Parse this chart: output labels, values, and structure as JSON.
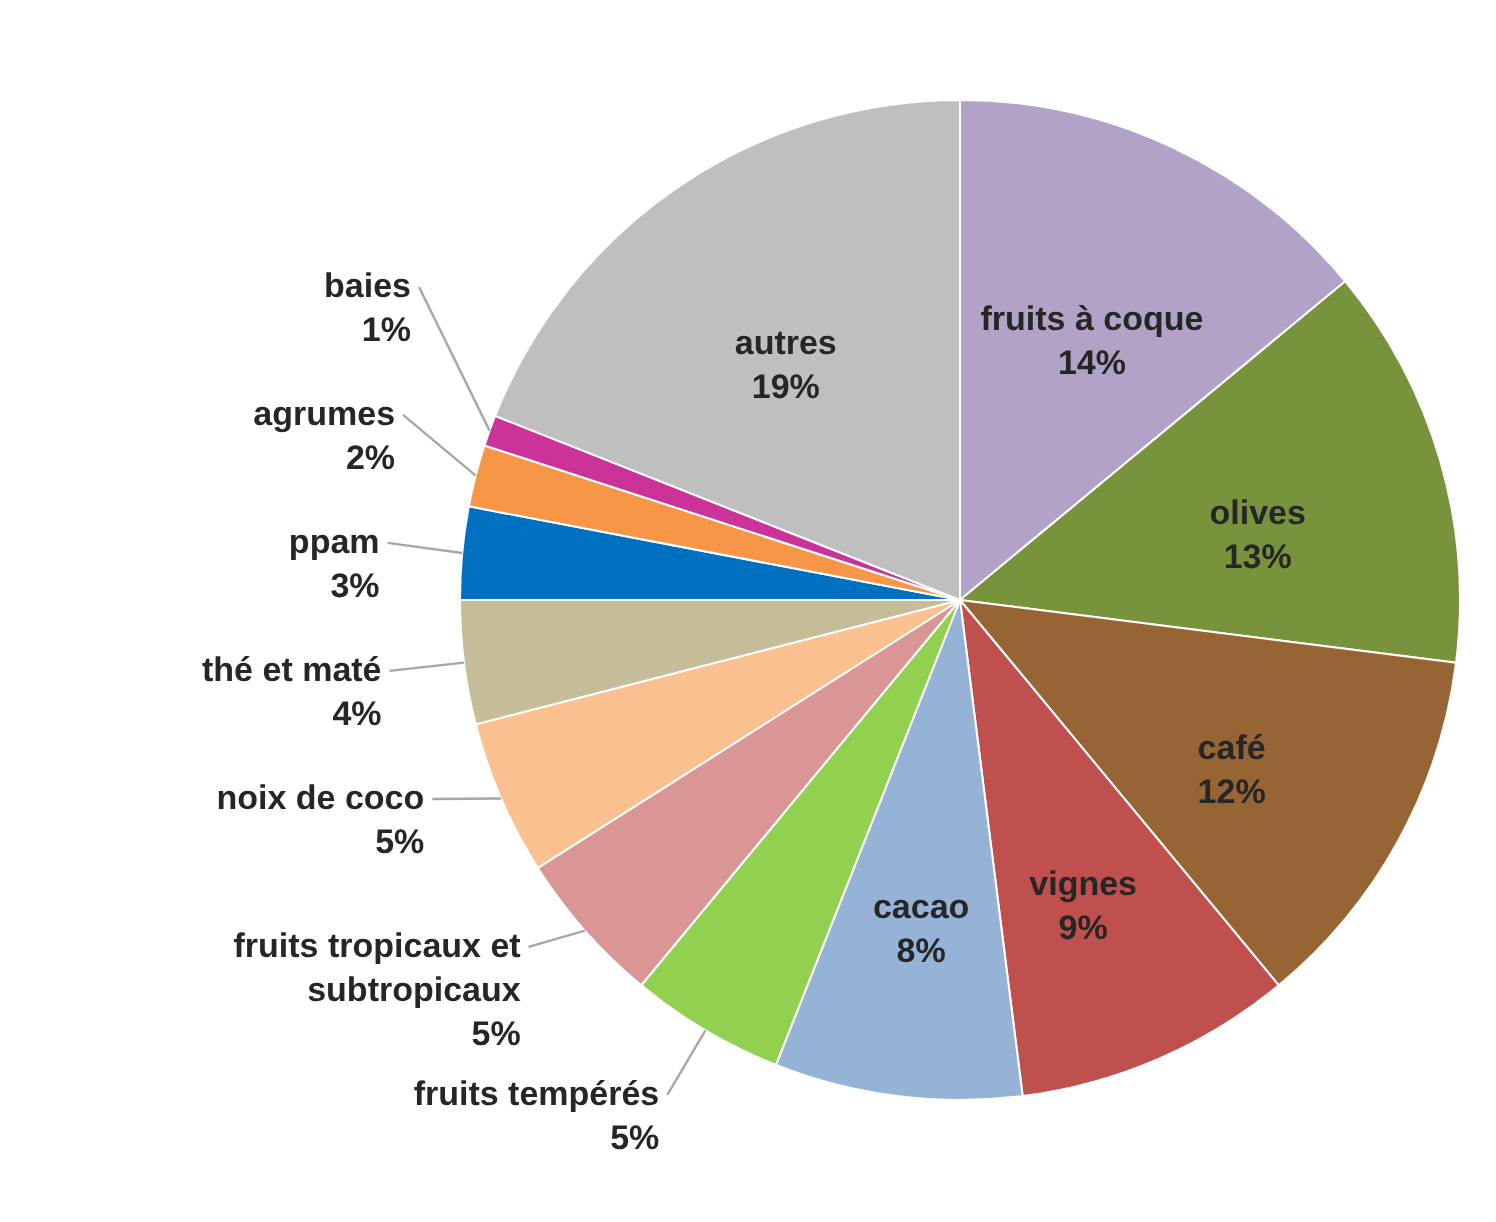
{
  "chart_data": {
    "type": "pie",
    "categories": [
      "fruits à coque",
      "olives",
      "café",
      "vignes",
      "cacao",
      "fruits tempérés",
      "fruits tropicaux et\nsubtropicaux",
      "noix de coco",
      "thé et maté",
      "ppam",
      "agrumes",
      "baies",
      "autres"
    ],
    "values": [
      14,
      13,
      12,
      9,
      8,
      5,
      5,
      5,
      4,
      3,
      2,
      1,
      19
    ],
    "value_labels": [
      "14%",
      "13%",
      "12%",
      "9%",
      "8%",
      "5%",
      "5%",
      "5%",
      "4%",
      "3%",
      "2%",
      "1%",
      "19%"
    ],
    "colors": [
      "#b3a2c7",
      "#77933c",
      "#976434",
      "#c0504d",
      "#95b3d7",
      "#92d050",
      "#d99694",
      "#fac090",
      "#c4bd97",
      "#0070c0",
      "#f79646",
      "#cc3399",
      "#bfbfbf"
    ]
  }
}
